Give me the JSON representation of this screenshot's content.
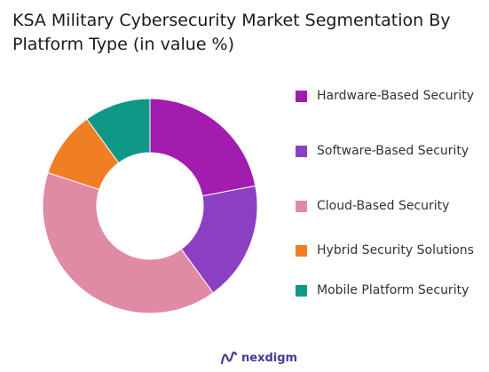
{
  "title_line1": "KSA Military Cybersecurity Market Segmentation By",
  "title_line2": "Platform Type (in value %)",
  "brand": {
    "name": "nexdigm",
    "icon": "nexdigm-logo-icon"
  },
  "chart_data": {
    "type": "pie",
    "donut": true,
    "title": "KSA Military Cybersecurity Market Segmentation By Platform Type (in value %)",
    "legend_position": "right",
    "categories": [
      "Hardware-Based Security",
      "Software-Based Security",
      "Cloud-Based Security",
      "Hybrid Security Solutions",
      "Mobile Platform Security"
    ],
    "values": [
      22,
      18,
      40,
      10,
      10
    ],
    "colors": [
      "#a21caf",
      "#8b3fc2",
      "#e08aa3",
      "#f07f24",
      "#109886"
    ]
  }
}
